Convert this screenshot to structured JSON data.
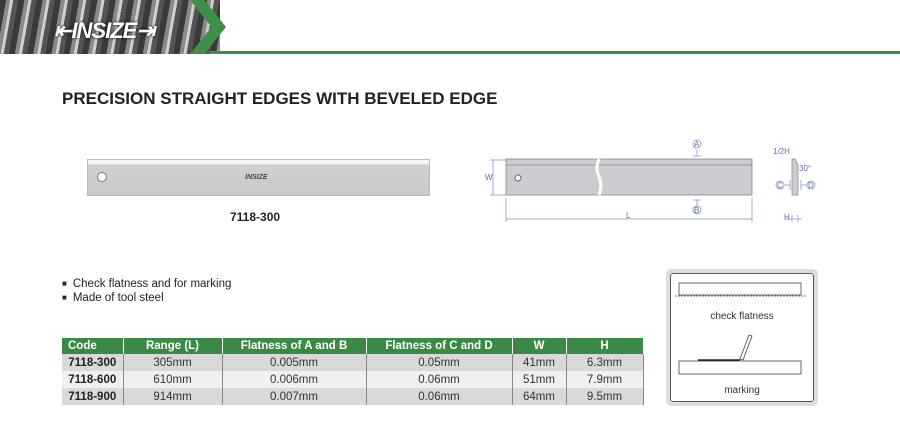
{
  "brand": {
    "logo": "INSIZE",
    "accent": "#3a8a44"
  },
  "title": "PRECISION STRAIGHT EDGES WITH BEVELED EDGE",
  "product_photo": {
    "caption": "7118-300",
    "engraving": "INSIZE"
  },
  "drawing": {
    "labels": {
      "a": "A",
      "b": "B",
      "c": "C",
      "d": "D",
      "w": "W",
      "l": "L",
      "h": "H",
      "half_h": "1/2H",
      "angle": "30°"
    }
  },
  "features": [
    "Check flatness and for marking",
    "Made of tool steel"
  ],
  "table": {
    "headers": [
      "Code",
      "Range (L)",
      "Flatness of A and B",
      "Flatness of C and D",
      "W",
      "H"
    ],
    "rows": [
      [
        "7118-300",
        "305mm",
        "0.005mm",
        "0.05mm",
        "41mm",
        "6.3mm"
      ],
      [
        "7118-600",
        "610mm",
        "0.006mm",
        "0.06mm",
        "51mm",
        "7.9mm"
      ],
      [
        "7118-900",
        "914mm",
        "0.007mm",
        "0.06mm",
        "64mm",
        "9.5mm"
      ]
    ]
  },
  "usage": {
    "check": "check flatness",
    "marking": "marking"
  }
}
